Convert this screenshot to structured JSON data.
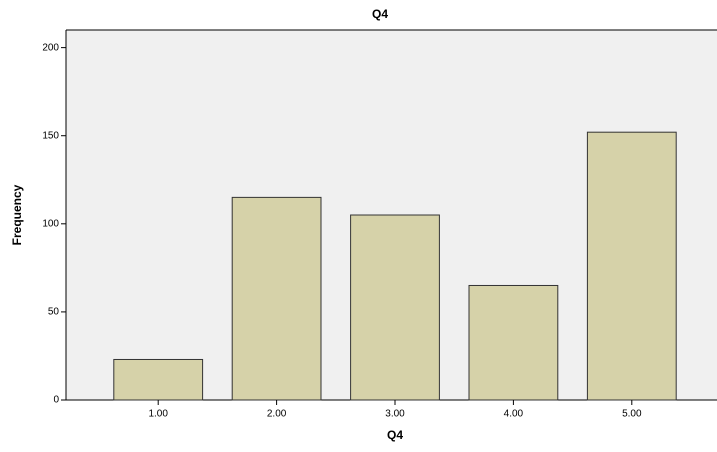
{
  "chart_data": {
    "type": "bar",
    "title": "Q4",
    "x_label": "Q4",
    "y_label": "Frequency",
    "categories": [
      "1.00",
      "2.00",
      "3.00",
      "4.00",
      "5.00"
    ],
    "values": [
      23,
      115,
      105,
      65,
      152
    ],
    "color": "#d4cfa3",
    "ylim": [
      0,
      210
    ],
    "yticks": [
      0,
      50,
      100,
      150,
      200
    ]
  }
}
